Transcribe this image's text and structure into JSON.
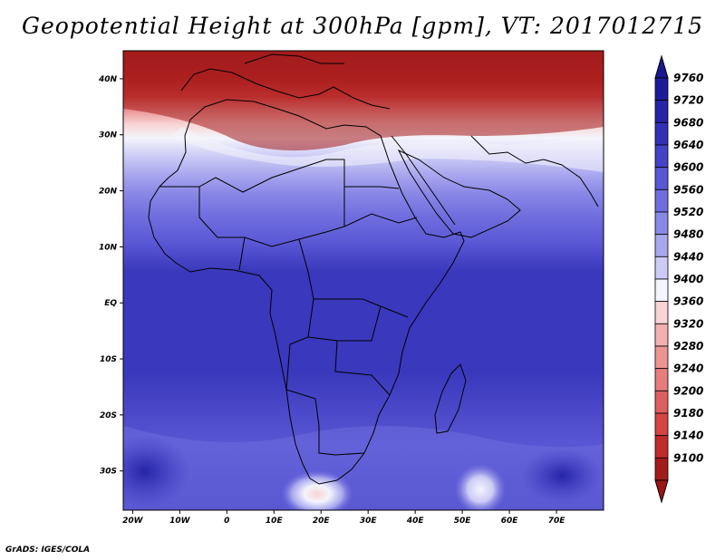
{
  "title": "Geopotential Height at 300hPa [gpm], VT: 2017012715",
  "footer": "GrADS: IGES/COLA",
  "map": {
    "lon_range": [
      -22,
      80
    ],
    "lat_range": [
      -37,
      45
    ],
    "lon_ticks": [
      {
        "lon": -20,
        "label": "20W"
      },
      {
        "lon": -10,
        "label": "10W"
      },
      {
        "lon": 0,
        "label": "0"
      },
      {
        "lon": 10,
        "label": "10E"
      },
      {
        "lon": 20,
        "label": "20E"
      },
      {
        "lon": 30,
        "label": "30E"
      },
      {
        "lon": 40,
        "label": "40E"
      },
      {
        "lon": 50,
        "label": "50E"
      },
      {
        "lon": 60,
        "label": "60E"
      },
      {
        "lon": 70,
        "label": "70E"
      }
    ],
    "lat_ticks": [
      {
        "lat": 40,
        "label": "40N"
      },
      {
        "lat": 30,
        "label": "30N"
      },
      {
        "lat": 20,
        "label": "20N"
      },
      {
        "lat": 10,
        "label": "10N"
      },
      {
        "lat": 0,
        "label": "EQ"
      },
      {
        "lat": -10,
        "label": "10S"
      },
      {
        "lat": -20,
        "label": "20S"
      },
      {
        "lat": -30,
        "label": "30S"
      }
    ]
  },
  "colorbar": {
    "levels": [
      {
        "label": "9760",
        "color": "#1e1b9a"
      },
      {
        "label": "9720",
        "color": "#2624a8"
      },
      {
        "label": "9680",
        "color": "#3330b8"
      },
      {
        "label": "9640",
        "color": "#4442c6"
      },
      {
        "label": "9600",
        "color": "#5957d4"
      },
      {
        "label": "9560",
        "color": "#706ede"
      },
      {
        "label": "9520",
        "color": "#8a88e6"
      },
      {
        "label": "9480",
        "color": "#a8a7ee"
      },
      {
        "label": "9440",
        "color": "#cccbf6"
      },
      {
        "label": "9400",
        "color": "#f4f4fc"
      },
      {
        "label": "9360",
        "color": "#f8d4d4"
      },
      {
        "label": "9320",
        "color": "#f2b0b0"
      },
      {
        "label": "9280",
        "color": "#ec9494"
      },
      {
        "label": "9240",
        "color": "#e67c7c"
      },
      {
        "label": "9200",
        "color": "#de5f5f"
      },
      {
        "label": "9180",
        "color": "#d64444"
      },
      {
        "label": "9140",
        "color": "#c02b2b"
      },
      {
        "label": "9100",
        "color": "#a31c1c"
      }
    ],
    "top_color": "#1a1891",
    "bottom_color": "#9a1616"
  }
}
